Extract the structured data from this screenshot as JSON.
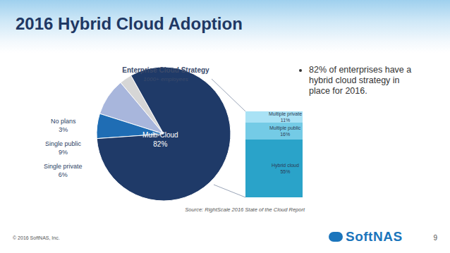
{
  "slide": {
    "title": "2016 Hybrid Cloud Adoption",
    "bullets": [
      "82% of enterprises have a hybrid cloud strategy in place for 2016."
    ],
    "source": "Source: RightScale 2016 State of the Cloud Report",
    "footer": "© 2016 SoftNAS, Inc.",
    "page": "9",
    "logo": "SoftNAS"
  },
  "chart_data": [
    {
      "type": "pie",
      "title": "Enterprise Cloud Strategy",
      "subtitle": "1000+ employees",
      "categories": [
        "No plans",
        "Single public",
        "Single private",
        "Multi-Cloud"
      ],
      "values": [
        3,
        9,
        6,
        82
      ],
      "value_labels": [
        "3%",
        "9%",
        "6%",
        "82%"
      ],
      "colors": [
        "#d6d6d6",
        "#a8b6dc",
        "#1f6db4",
        "#1f3a68"
      ],
      "data_labels": true
    },
    {
      "type": "bar",
      "stacked": true,
      "categories": [
        null
      ],
      "series": [
        {
          "name": "Hybrid cloud",
          "color": "#2aa3c9",
          "values": [
            55
          ],
          "value_labels": [
            "55%"
          ]
        },
        {
          "name": "Multiple public",
          "color": "#74cbe6",
          "values": [
            16
          ],
          "value_labels": [
            "16%"
          ]
        },
        {
          "name": "Multiple private",
          "color": "#a9e2f5",
          "values": [
            11
          ],
          "value_labels": [
            "11%"
          ]
        }
      ],
      "ylim": [
        0,
        82
      ],
      "data_labels": true,
      "tick_labels": false
    }
  ]
}
